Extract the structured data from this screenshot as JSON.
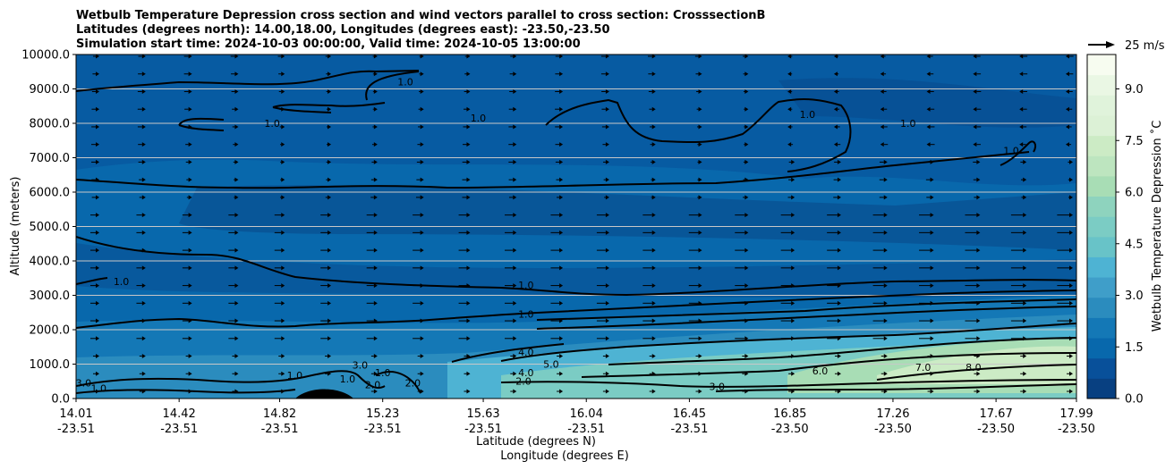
{
  "chart_data": {
    "type": "heatmap",
    "title_lines": [
      "Wetbulb Temperature Depression cross section and wind vectors parallel to cross section: CrosssectionB",
      "Latitudes (degrees north): 14.00,18.00, Longitudes (degrees east): -23.50,-23.50",
      "Simulation start time: 2024-10-03 00:00:00, Valid time: 2024-10-05 13:00:00"
    ],
    "xlabel": "Latitude (degrees N)",
    "xlabel2": "Longitude (degrees E)",
    "ylabel": "Altitude (meters)",
    "xlim": [
      14.01,
      17.99
    ],
    "ylim": [
      0,
      10000
    ],
    "x_ticks": [
      {
        "lat": "14.01",
        "lon": "-23.51",
        "value": 14.01
      },
      {
        "lat": "14.42",
        "lon": "-23.51",
        "value": 14.42
      },
      {
        "lat": "14.82",
        "lon": "-23.51",
        "value": 14.82
      },
      {
        "lat": "15.23",
        "lon": "-23.51",
        "value": 15.23
      },
      {
        "lat": "15.63",
        "lon": "-23.51",
        "value": 15.63
      },
      {
        "lat": "16.04",
        "lon": "-23.51",
        "value": 16.04
      },
      {
        "lat": "16.45",
        "lon": "-23.51",
        "value": 16.45
      },
      {
        "lat": "16.85",
        "lon": "-23.50",
        "value": 16.85
      },
      {
        "lat": "17.26",
        "lon": "-23.50",
        "value": 17.26
      },
      {
        "lat": "17.67",
        "lon": "-23.50",
        "value": 17.67
      },
      {
        "lat": "17.99",
        "lon": "-23.50",
        "value": 17.99
      }
    ],
    "y_ticks": [
      {
        "label": "0.0",
        "value": 0
      },
      {
        "label": "1000.0",
        "value": 1000
      },
      {
        "label": "2000.0",
        "value": 2000
      },
      {
        "label": "3000.0",
        "value": 3000
      },
      {
        "label": "4000.0",
        "value": 4000
      },
      {
        "label": "5000.0",
        "value": 5000
      },
      {
        "label": "6000.0",
        "value": 6000
      },
      {
        "label": "7000.0",
        "value": 7000
      },
      {
        "label": "8000.0",
        "value": 8000
      },
      {
        "label": "9000.0",
        "value": 9000
      },
      {
        "label": "10000.0",
        "value": 10000
      }
    ],
    "horizontal_gridlines": true,
    "colorbar": {
      "label": "Wetbulb Temperature Depression ˚C",
      "range": [
        0,
        10
      ],
      "ticks": [
        {
          "label": "0.0",
          "value": 0
        },
        {
          "label": "1.5",
          "value": 1.5
        },
        {
          "label": "3.0",
          "value": 3
        },
        {
          "label": "4.5",
          "value": 4.5
        },
        {
          "label": "6.0",
          "value": 6
        },
        {
          "label": "7.5",
          "value": 7.5
        },
        {
          "label": "9.0",
          "value": 9
        }
      ],
      "colors": [
        "#084081",
        "#08509a",
        "#0868ac",
        "#1478b6",
        "#2b8cbe",
        "#3f9ec9",
        "#4eb3d3",
        "#68c3c8",
        "#7bccc4",
        "#8ed3be",
        "#a8ddb5",
        "#bde5bf",
        "#ccebc5",
        "#dcf1d6",
        "#e0f3db",
        "#eaf7e4",
        "#f7fcf0"
      ]
    },
    "vector_key": {
      "label": "25 m/s",
      "speed_ms": 25
    },
    "field_description_levels": {
      "background": 1.0,
      "upper_dark_band_altitude_m": [
        6000,
        5000
      ]
    },
    "contour_labels": [
      {
        "text": "1.0",
        "x": 16.92,
        "y": 8150
      },
      {
        "text": "1.0",
        "x": 15.61,
        "y": 8050
      },
      {
        "text": "1.0",
        "x": 14.79,
        "y": 7900
      },
      {
        "text": "1.0",
        "x": 15.32,
        "y": 9100
      },
      {
        "text": "1.0",
        "x": 17.32,
        "y": 7900
      },
      {
        "text": "1.0",
        "x": 17.73,
        "y": 7100
      },
      {
        "text": "1.0",
        "x": 14.19,
        "y": 3300
      },
      {
        "text": "1.0",
        "x": 15.8,
        "y": 3200
      },
      {
        "text": "1.0",
        "x": 15.8,
        "y": 2350
      },
      {
        "text": "4.0",
        "x": 15.8,
        "y": 1250
      },
      {
        "text": "4.0",
        "x": 15.8,
        "y": 650
      },
      {
        "text": "5.0",
        "x": 15.9,
        "y": 900
      },
      {
        "text": "2.0",
        "x": 15.79,
        "y": 400
      },
      {
        "text": "3.0",
        "x": 16.56,
        "y": 250
      },
      {
        "text": "6.0",
        "x": 16.97,
        "y": 700
      },
      {
        "text": "7.0",
        "x": 17.38,
        "y": 800
      },
      {
        "text": "8.0",
        "x": 17.58,
        "y": 800
      },
      {
        "text": "3.0",
        "x": 14.04,
        "y": 350
      },
      {
        "text": "1.0",
        "x": 14.1,
        "y": 200
      },
      {
        "text": "1.0",
        "x": 14.88,
        "y": 570
      },
      {
        "text": "1.0",
        "x": 15.09,
        "y": 470
      },
      {
        "text": "3.0",
        "x": 15.14,
        "y": 870
      },
      {
        "text": "2.0",
        "x": 15.19,
        "y": 300
      },
      {
        "text": "1.0",
        "x": 15.23,
        "y": 650
      },
      {
        "text": "2.0",
        "x": 15.35,
        "y": 350
      }
    ]
  }
}
